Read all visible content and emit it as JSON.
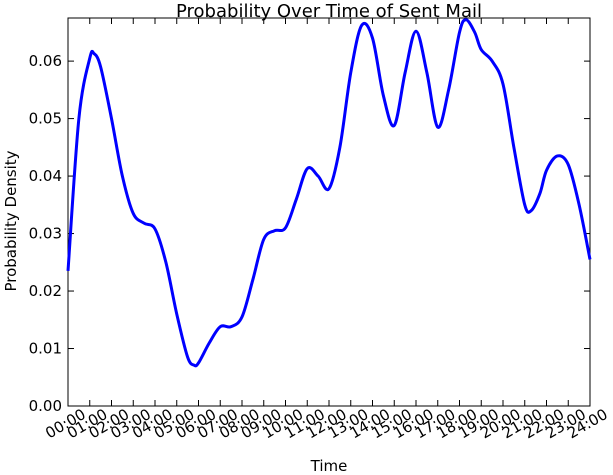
{
  "chart_data": {
    "type": "line",
    "title": "Probability Over Time of Sent Mail",
    "x_label": "Time",
    "y_label": "Probability Density",
    "x": [
      0,
      0.5,
      1,
      1.2,
      1.5,
      2,
      2.5,
      3,
      3.5,
      4,
      4.5,
      5,
      5.5,
      5.8,
      6,
      6.5,
      7,
      7.5,
      8,
      8.5,
      9,
      9.5,
      10,
      10.5,
      11,
      11.5,
      12,
      12.5,
      13,
      13.5,
      14,
      14.5,
      15,
      15.5,
      16,
      16.5,
      17,
      17.5,
      18,
      18.3,
      18.7,
      19,
      19.5,
      20,
      20.5,
      21,
      21.3,
      21.7,
      22,
      22.5,
      23,
      23.5,
      24
    ],
    "series": [
      {
        "color": "#0000ff",
        "values": [
          0.0235,
          0.05,
          0.0605,
          0.0613,
          0.059,
          0.05,
          0.04,
          0.0335,
          0.0318,
          0.0308,
          0.025,
          0.016,
          0.0085,
          0.0071,
          0.0075,
          0.011,
          0.0138,
          0.0138,
          0.0155,
          0.022,
          0.029,
          0.0305,
          0.031,
          0.036,
          0.0413,
          0.04,
          0.0378,
          0.045,
          0.058,
          0.0662,
          0.064,
          0.054,
          0.0488,
          0.058,
          0.0652,
          0.058,
          0.0485,
          0.055,
          0.065,
          0.0672,
          0.065,
          0.062,
          0.06,
          0.056,
          0.045,
          0.035,
          0.034,
          0.037,
          0.041,
          0.0435,
          0.042,
          0.035,
          0.0255
        ]
      }
    ],
    "xlim": [
      0,
      24
    ],
    "ylim": [
      0,
      0.0675
    ],
    "xticks": [
      {
        "value": 0,
        "label": "00:00"
      },
      {
        "value": 1,
        "label": "01:00"
      },
      {
        "value": 2,
        "label": "02:00"
      },
      {
        "value": 3,
        "label": "03:00"
      },
      {
        "value": 4,
        "label": "04:00"
      },
      {
        "value": 5,
        "label": "05:00"
      },
      {
        "value": 6,
        "label": "06:00"
      },
      {
        "value": 7,
        "label": "07:00"
      },
      {
        "value": 8,
        "label": "08:00"
      },
      {
        "value": 9,
        "label": "09:00"
      },
      {
        "value": 10,
        "label": "10:00"
      },
      {
        "value": 11,
        "label": "11:00"
      },
      {
        "value": 12,
        "label": "12:00"
      },
      {
        "value": 13,
        "label": "13:00"
      },
      {
        "value": 14,
        "label": "14:00"
      },
      {
        "value": 15,
        "label": "15:00"
      },
      {
        "value": 16,
        "label": "16:00"
      },
      {
        "value": 17,
        "label": "17:00"
      },
      {
        "value": 18,
        "label": "18:00"
      },
      {
        "value": 19,
        "label": "19:00"
      },
      {
        "value": 20,
        "label": "20:00"
      },
      {
        "value": 21,
        "label": "21:00"
      },
      {
        "value": 22,
        "label": "22:00"
      },
      {
        "value": 23,
        "label": "23:00"
      },
      {
        "value": 24,
        "label": "24:00"
      }
    ],
    "yticks": [
      {
        "value": 0,
        "label": "0.00"
      },
      {
        "value": 0.01,
        "label": "0.01"
      },
      {
        "value": 0.02,
        "label": "0.02"
      },
      {
        "value": 0.03,
        "label": "0.03"
      },
      {
        "value": 0.04,
        "label": "0.04"
      },
      {
        "value": 0.05,
        "label": "0.05"
      },
      {
        "value": 0.06,
        "label": "0.06"
      }
    ]
  }
}
